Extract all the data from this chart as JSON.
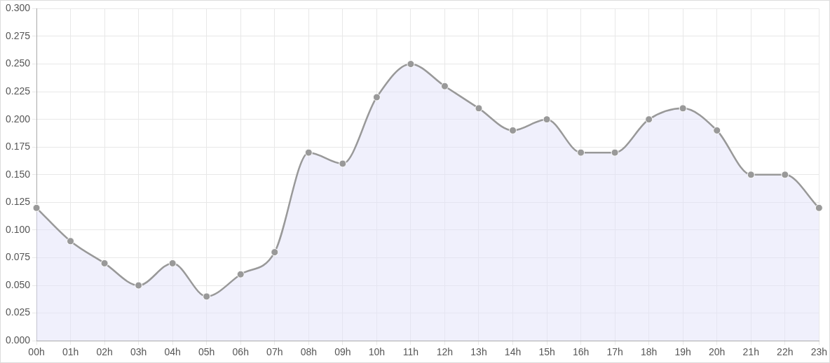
{
  "chart_data": {
    "type": "area",
    "categories": [
      "00h",
      "01h",
      "02h",
      "03h",
      "04h",
      "05h",
      "06h",
      "07h",
      "08h",
      "09h",
      "10h",
      "11h",
      "12h",
      "13h",
      "14h",
      "15h",
      "16h",
      "17h",
      "18h",
      "19h",
      "20h",
      "21h",
      "22h",
      "23h"
    ],
    "series": [
      {
        "color": "#999999",
        "values": [
          0.12,
          0.09,
          0.07,
          0.05,
          0.07,
          0.04,
          0.06,
          0.08,
          0.17,
          0.16,
          0.22,
          0.25,
          0.23,
          0.21,
          0.19,
          0.2,
          0.17,
          0.17,
          0.2,
          0.21,
          0.19,
          0.15,
          0.15,
          0.12
        ]
      }
    ],
    "ylim": [
      0,
      0.3
    ],
    "yticks": [
      {
        "value": 0,
        "label": "0.000"
      },
      {
        "value": 0.025,
        "label": "0.025"
      },
      {
        "value": 0.05,
        "label": "0.050"
      },
      {
        "value": 0.075,
        "label": "0.075"
      },
      {
        "value": 0.1,
        "label": "0.100"
      },
      {
        "value": 0.125,
        "label": "0.125"
      },
      {
        "value": 0.15,
        "label": "0.150"
      },
      {
        "value": 0.175,
        "label": "0.175"
      },
      {
        "value": 0.2,
        "label": "0.200"
      },
      {
        "value": 0.225,
        "label": "0.225"
      },
      {
        "value": 0.25,
        "label": "0.250"
      },
      {
        "value": 0.275,
        "label": "0.275"
      },
      {
        "value": 0.3,
        "label": "0.300"
      }
    ],
    "grid": true,
    "legend": false,
    "marker": "circle",
    "line_style": "solid"
  }
}
